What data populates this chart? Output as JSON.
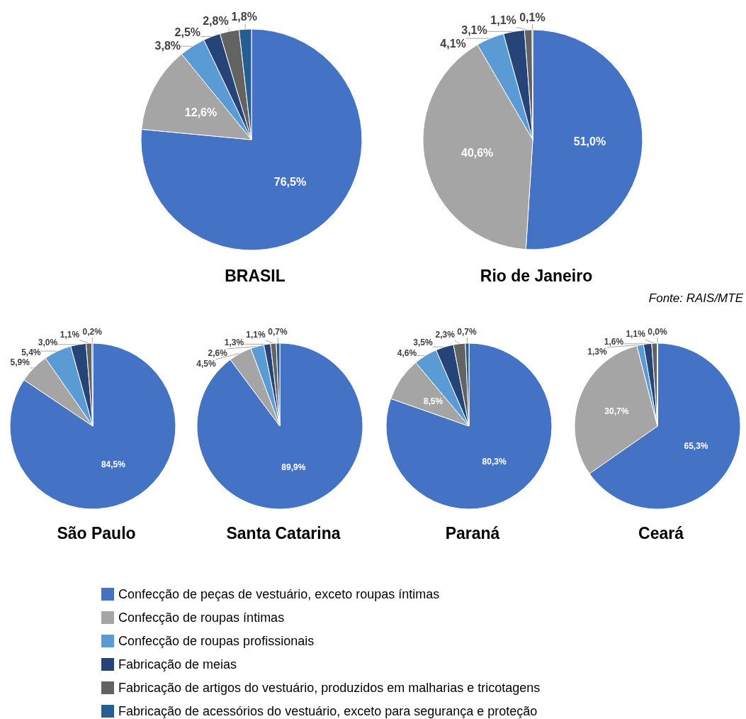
{
  "chart_data": [
    {
      "type": "pie",
      "title": "BRASIL",
      "legend": "bottom",
      "categories": [
        "Confecção de peças de vestuário, exceto roupas íntimas",
        "Confecção de roupas íntimas",
        "Confecção de roupas profissionais",
        "Fabricação de meias",
        "Fabricação de artigos do vestuário, produzidos em malharias e tricotagens",
        "Fabricação de acessórios do vestuário, exceto para segurança e proteção"
      ],
      "values": [
        76.5,
        12.6,
        3.8,
        2.5,
        2.8,
        1.8
      ],
      "value_labels": [
        "76,5%",
        "12,6%",
        "3,8%",
        "2,5%",
        "2,8%",
        "1,8%"
      ],
      "colors": [
        "#4472c4",
        "#a5a5a5",
        "#5b9bd5",
        "#264478",
        "#636363",
        "#255e91"
      ]
    },
    {
      "type": "pie",
      "title": "Rio de Janeiro",
      "annotations": [
        "Fonte: RAIS/MTE"
      ],
      "categories": [
        null,
        null,
        null,
        null,
        null,
        null
      ],
      "values": [
        51.0,
        40.6,
        4.1,
        3.1,
        1.1,
        0.1
      ],
      "value_labels": [
        "51,0%",
        "40,6%",
        "4,1%",
        "3,1%",
        "1,1%",
        "0,1%"
      ],
      "colors": [
        "#4472c4",
        "#a5a5a5",
        "#5b9bd5",
        "#264478",
        "#636363",
        "#255e91"
      ]
    },
    {
      "type": "pie",
      "title": "São Paulo",
      "categories": [
        null,
        null,
        null,
        null,
        null,
        null
      ],
      "values": [
        84.5,
        5.9,
        5.4,
        3.0,
        1.1,
        0.2
      ],
      "value_labels": [
        "84,5%",
        "5,9%",
        "5,4%",
        "3,0%",
        "1,1%",
        "0,2%"
      ],
      "colors": [
        "#4472c4",
        "#a5a5a5",
        "#5b9bd5",
        "#264478",
        "#636363",
        "#255e91"
      ]
    },
    {
      "type": "pie",
      "title": "Santa Catarina",
      "categories": [
        null,
        null,
        null,
        null,
        null,
        null
      ],
      "values": [
        89.9,
        4.5,
        2.6,
        1.3,
        1.1,
        0.7
      ],
      "value_labels": [
        "89,9%",
        "4,5%",
        "2,6%",
        "1,3%",
        "1,1%",
        "0,7%"
      ],
      "colors": [
        "#4472c4",
        "#a5a5a5",
        "#5b9bd5",
        "#264478",
        "#636363",
        "#255e91"
      ]
    },
    {
      "type": "pie",
      "title": "Paraná",
      "categories": [
        null,
        null,
        null,
        null,
        null,
        null
      ],
      "values": [
        80.3,
        8.5,
        4.6,
        3.5,
        2.3,
        0.7
      ],
      "value_labels": [
        "80,3%",
        "8,5%",
        "4,6%",
        "3,5%",
        "2,3%",
        "0,7%"
      ],
      "colors": [
        "#4472c4",
        "#a5a5a5",
        "#5b9bd5",
        "#264478",
        "#636363",
        "#255e91"
      ]
    },
    {
      "type": "pie",
      "title": "Ceará",
      "categories": [
        null,
        null,
        null,
        null,
        null,
        null
      ],
      "values": [
        65.3,
        30.7,
        1.3,
        1.6,
        1.1,
        0.0
      ],
      "value_labels": [
        "65,3%",
        "30,7%",
        "1,3%",
        "1,6%",
        "1,1%",
        "0,0%"
      ],
      "colors": [
        "#4472c4",
        "#a5a5a5",
        "#5b9bd5",
        "#264478",
        "#636363",
        "#255e91"
      ]
    }
  ]
}
